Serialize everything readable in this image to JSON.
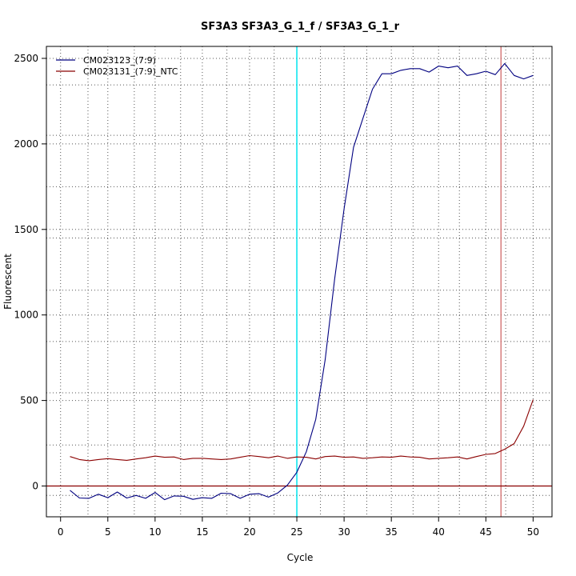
{
  "chart_data": {
    "type": "line",
    "title": "SF3A3  SF3A3_G_1_f / SF3A3_G_1_r",
    "xlabel": "Cycle",
    "ylabel": "Fluorescent",
    "xlim": [
      -1.5,
      52
    ],
    "ylim": [
      -180,
      2570
    ],
    "x_ticks": [
      0,
      5,
      10,
      15,
      20,
      25,
      30,
      35,
      40,
      45,
      50
    ],
    "y_ticks": [
      0,
      500,
      1000,
      1500,
      2000,
      2500
    ],
    "grid": true,
    "grid_x_dotted": [
      2.9,
      7.8,
      12.7,
      17.6,
      22.6,
      27.5,
      32.4,
      37.3,
      42.2,
      47.1
    ],
    "grid_y_dotted": [
      -55,
      240,
      545,
      845,
      1145,
      1450,
      1750,
      2050,
      2345
    ],
    "legend_position": "top-left",
    "colors": {
      "baseline": "#8B0000",
      "threshold_cycle": "#00e5ee",
      "end_marker": "#cd5c5c"
    },
    "reference_lines": {
      "horizontal_y": 0,
      "vertical_cyan_x": 25,
      "vertical_red_x": 46.6
    },
    "series": [
      {
        "name": "CM023123_(7:9)",
        "color": "#000080",
        "x": [
          1,
          2,
          3,
          4,
          5,
          6,
          7,
          8,
          9,
          10,
          11,
          12,
          13,
          14,
          15,
          16,
          17,
          18,
          19,
          20,
          21,
          22,
          23,
          24,
          25,
          26,
          27,
          28,
          29,
          30,
          31,
          32,
          33,
          34,
          35,
          36,
          37,
          38,
          39,
          40,
          41,
          42,
          43,
          44,
          45,
          46,
          47,
          48,
          49,
          50
        ],
        "values": [
          -25,
          -70,
          -72,
          -48,
          -68,
          -35,
          -70,
          -55,
          -72,
          -38,
          -80,
          -58,
          -60,
          -78,
          -68,
          -72,
          -42,
          -45,
          -72,
          -48,
          -45,
          -65,
          -40,
          5,
          80,
          200,
          390,
          740,
          1210,
          1620,
          1980,
          2150,
          2320,
          2410,
          2410,
          2430,
          2440,
          2440,
          2420,
          2455,
          2445,
          2455,
          2400,
          2410,
          2425,
          2405,
          2470,
          2400,
          2380,
          2400
        ]
      },
      {
        "name": "CM023131_(7:9)_NTC",
        "color": "#8B0000",
        "x": [
          1,
          2,
          3,
          4,
          5,
          6,
          7,
          8,
          9,
          10,
          11,
          12,
          13,
          14,
          15,
          16,
          17,
          18,
          19,
          20,
          21,
          22,
          23,
          24,
          25,
          26,
          27,
          28,
          29,
          30,
          31,
          32,
          33,
          34,
          35,
          36,
          37,
          38,
          39,
          40,
          41,
          42,
          43,
          44,
          45,
          46,
          47,
          48,
          49,
          50
        ],
        "values": [
          172,
          155,
          148,
          155,
          160,
          155,
          150,
          158,
          165,
          175,
          168,
          170,
          155,
          162,
          162,
          158,
          155,
          158,
          168,
          178,
          172,
          165,
          175,
          162,
          170,
          168,
          158,
          172,
          175,
          168,
          170,
          162,
          165,
          170,
          168,
          175,
          170,
          168,
          158,
          162,
          165,
          170,
          158,
          172,
          185,
          190,
          215,
          248,
          350,
          505
        ]
      }
    ]
  }
}
